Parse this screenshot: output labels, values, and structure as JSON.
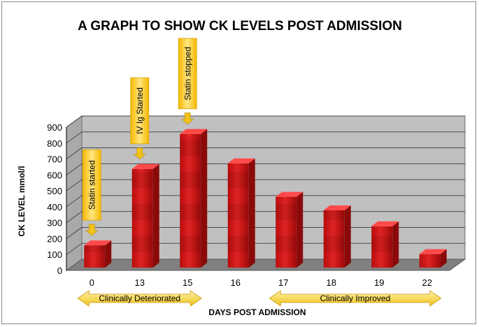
{
  "chart_data": {
    "type": "bar",
    "title": "A GRAPH TO SHOW CK LEVELS POST ADMISSION",
    "xlabel": "DAYS POST ADMISSION",
    "ylabel": "CK LEVEL mmol/l",
    "categories": [
      "0",
      "13",
      "15",
      "16",
      "17",
      "18",
      "19",
      "22"
    ],
    "values": [
      140,
      620,
      840,
      655,
      445,
      360,
      260,
      85
    ],
    "ylim": [
      0,
      900
    ],
    "yticks": [
      "0",
      "100",
      "200",
      "300",
      "400",
      "500",
      "600",
      "700",
      "800",
      "900"
    ],
    "grid": true,
    "annotations": [
      {
        "category_index": 0,
        "text": "Statin started"
      },
      {
        "category_index": 1,
        "text": "IV Ig Started"
      },
      {
        "category_index": 2,
        "text": "Statin stopped"
      }
    ],
    "spans": [
      {
        "from_index": 0,
        "to_index": 2,
        "label": "Clinically Deteriorated"
      },
      {
        "from_index": 4,
        "to_index": 7,
        "label": "Clinically Improved"
      }
    ],
    "colors": {
      "bar": "#d21a1a",
      "bar_dark": "#8a0a0a",
      "wall": "#c0c0c0",
      "floor": "#808080",
      "callout": "#f7c81e",
      "arrow": "#f2c21c"
    }
  }
}
